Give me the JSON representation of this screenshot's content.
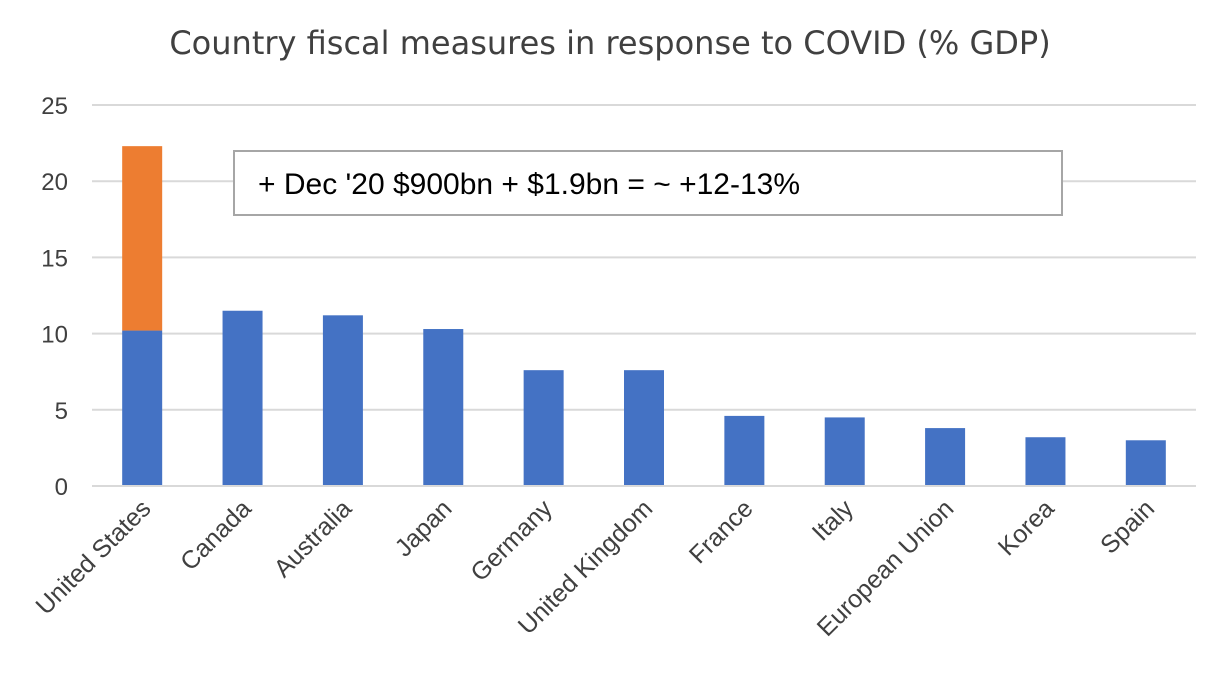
{
  "chart_data": {
    "type": "bar",
    "title": "Country fiscal measures in response to COVID (% GDP)",
    "xlabel": "",
    "ylabel": "",
    "ylim": [
      0,
      25
    ],
    "yticks": [
      0,
      5,
      10,
      15,
      20,
      25
    ],
    "grid": true,
    "categories": [
      "United States",
      "Canada",
      "Australia",
      "Japan",
      "Germany",
      "United Kingdom",
      "France",
      "Italy",
      "European Union",
      "Korea",
      "Spain"
    ],
    "series": [
      {
        "values": [
          10.2,
          11.5,
          11.2,
          10.3,
          7.6,
          7.6,
          4.6,
          4.5,
          3.8,
          3.2,
          3.0
        ],
        "color": "#4472C4"
      },
      {
        "values": [
          12.1,
          0,
          0,
          0,
          0,
          0,
          0,
          0,
          0,
          0,
          0
        ],
        "color": "#ED7D31"
      }
    ],
    "stacked": true,
    "annotation": "+ Dec '20 $900bn + $1.9bn = ~ +12-13%"
  }
}
